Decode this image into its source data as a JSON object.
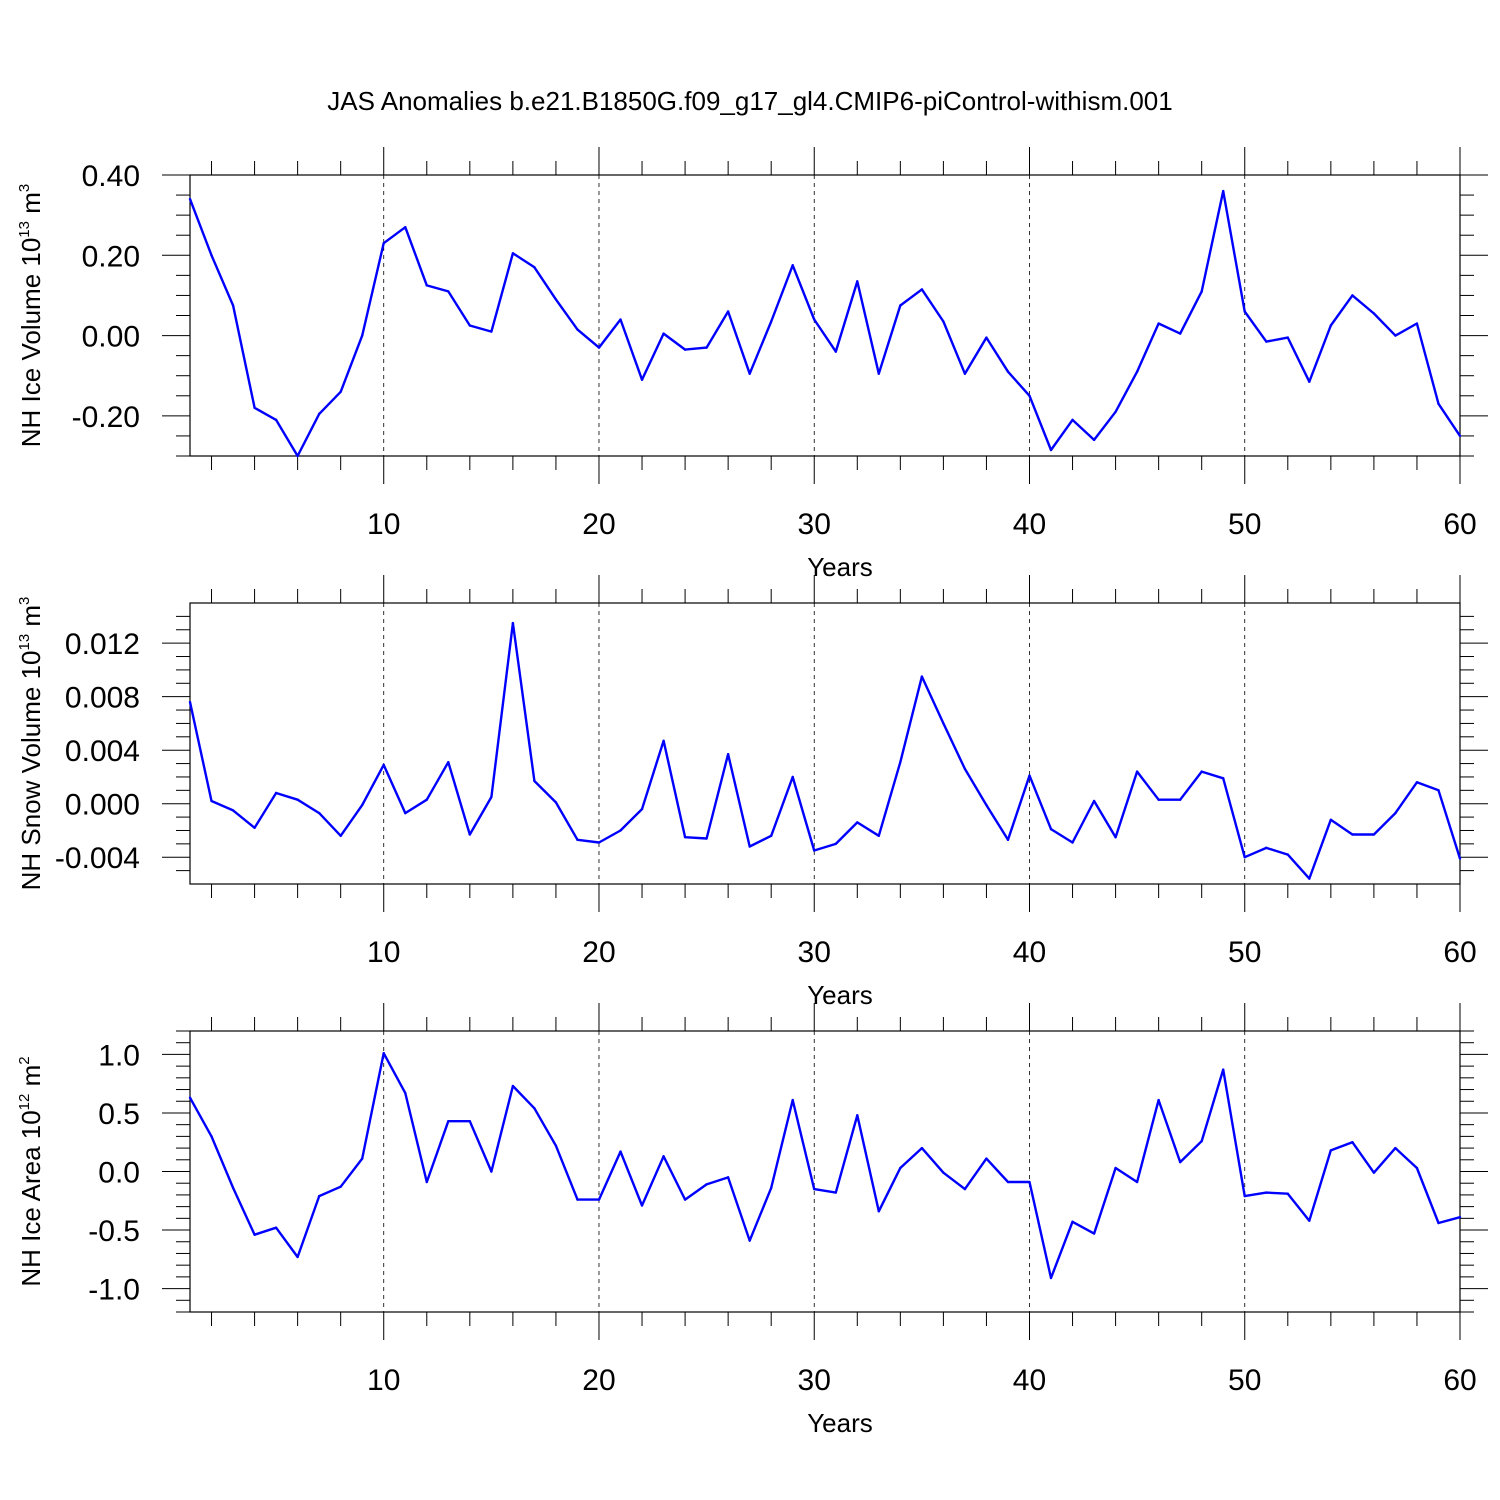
{
  "title": "JAS Anomalies b.e21.B1850G.f09_g17_gl4.CMIP6-piControl-withism.001",
  "colors": {
    "series": "#0000ff",
    "axes": "#000000",
    "grid": "#000000"
  },
  "chart_data": [
    {
      "type": "line",
      "ylabel": {
        "prefix": "NH Ice Volume 10",
        "sup": "13",
        "unit": " m",
        "unit_sup": "3"
      },
      "xlabel": "Years",
      "xlim": [
        1,
        60
      ],
      "ylim": [
        -0.3,
        0.4
      ],
      "xticks": [
        10,
        20,
        30,
        40,
        50,
        60
      ],
      "yticks": [
        -0.2,
        0.0,
        0.2,
        0.4
      ],
      "ytick_labels": [
        "-0.20",
        "0.00",
        "0.20",
        "0.40"
      ],
      "yminor": [
        -0.3,
        -0.25,
        -0.15,
        -0.1,
        -0.05,
        0.05,
        0.1,
        0.15,
        0.25,
        0.3,
        0.35
      ],
      "grid_x": true,
      "x": [
        1,
        2,
        3,
        4,
        5,
        6,
        7,
        8,
        9,
        10,
        11,
        12,
        13,
        14,
        15,
        16,
        17,
        18,
        19,
        20,
        21,
        22,
        23,
        24,
        25,
        26,
        27,
        28,
        29,
        30,
        31,
        32,
        33,
        34,
        35,
        36,
        37,
        38,
        39,
        40,
        41,
        42,
        43,
        44,
        45,
        46,
        47,
        48,
        49,
        50,
        51,
        52,
        53,
        54,
        55,
        56,
        57,
        58,
        59,
        60
      ],
      "y": [
        0.34,
        0.2,
        0.075,
        -0.18,
        -0.21,
        -0.3,
        -0.195,
        -0.14,
        0.0,
        0.23,
        0.27,
        0.125,
        0.11,
        0.025,
        0.01,
        0.205,
        0.17,
        0.09,
        0.015,
        -0.03,
        0.04,
        -0.11,
        0.005,
        -0.035,
        -0.03,
        0.06,
        -0.095,
        0.035,
        0.175,
        0.04,
        -0.04,
        0.135,
        -0.095,
        0.075,
        0.115,
        0.035,
        -0.095,
        -0.005,
        -0.09,
        -0.15,
        -0.285,
        -0.21,
        -0.26,
        -0.19,
        -0.09,
        0.03,
        0.005,
        0.11,
        0.36,
        0.06,
        -0.015,
        -0.005,
        -0.115,
        0.025,
        0.1,
        0.055,
        0.0,
        0.03,
        -0.17,
        -0.25
      ]
    },
    {
      "type": "line",
      "ylabel": {
        "prefix": "NH Snow Volume 10",
        "sup": "13",
        "unit": " m",
        "unit_sup": "3"
      },
      "xlabel": "Years",
      "xlim": [
        1,
        60
      ],
      "ylim": [
        -0.006,
        0.015
      ],
      "xticks": [
        10,
        20,
        30,
        40,
        50,
        60
      ],
      "yticks": [
        -0.004,
        0.0,
        0.004,
        0.008,
        0.012
      ],
      "ytick_labels": [
        "-0.004",
        "0.000",
        "0.004",
        "0.008",
        "0.012"
      ],
      "yminor": [
        -0.005,
        -0.003,
        -0.002,
        -0.001,
        0.001,
        0.002,
        0.003,
        0.005,
        0.006,
        0.007,
        0.009,
        0.01,
        0.011,
        0.013,
        0.014
      ],
      "grid_x": true,
      "x": [
        1,
        2,
        3,
        4,
        5,
        6,
        7,
        8,
        9,
        10,
        11,
        12,
        13,
        14,
        15,
        16,
        17,
        18,
        19,
        20,
        21,
        22,
        23,
        24,
        25,
        26,
        27,
        28,
        29,
        30,
        31,
        32,
        33,
        34,
        35,
        36,
        37,
        38,
        39,
        40,
        41,
        42,
        43,
        44,
        45,
        46,
        47,
        48,
        49,
        50,
        51,
        52,
        53,
        54,
        55,
        56,
        57,
        58,
        59,
        60
      ],
      "y": [
        0.0076,
        0.0002,
        -0.0005,
        -0.0018,
        0.0008,
        0.0003,
        -0.0007,
        -0.0024,
        -0.0001,
        0.0029,
        -0.0007,
        0.0003,
        0.0031,
        -0.0023,
        0.0005,
        0.0135,
        0.0017,
        0.0001,
        -0.0027,
        -0.0029,
        -0.002,
        -0.0004,
        0.0047,
        -0.0025,
        -0.0026,
        0.0037,
        -0.0032,
        -0.0024,
        0.002,
        -0.0035,
        -0.003,
        -0.0014,
        -0.0024,
        0.0031,
        0.0095,
        0.006,
        0.0026,
        -0.0001,
        -0.0027,
        0.0021,
        -0.0019,
        -0.0029,
        0.0002,
        -0.0025,
        0.0024,
        0.0003,
        0.0003,
        0.0024,
        0.0019,
        -0.004,
        -0.0033,
        -0.0038,
        -0.0056,
        -0.0012,
        -0.0023,
        -0.0023,
        -0.0007,
        0.0016,
        0.001,
        -0.0041
      ]
    },
    {
      "type": "line",
      "ylabel": {
        "prefix": "NH Ice Area 10",
        "sup": "12",
        "unit": " m",
        "unit_sup": "2"
      },
      "xlabel": "Years",
      "xlim": [
        1,
        60
      ],
      "ylim": [
        -1.2,
        1.2
      ],
      "xticks": [
        10,
        20,
        30,
        40,
        50,
        60
      ],
      "yticks": [
        -1.0,
        -0.5,
        0.0,
        0.5,
        1.0
      ],
      "ytick_labels": [
        "-1.0",
        "-0.5",
        "0.0",
        "0.5",
        "1.0"
      ],
      "yminor": [
        -1.2,
        -1.1,
        -0.9,
        -0.8,
        -0.7,
        -0.6,
        -0.4,
        -0.3,
        -0.2,
        -0.1,
        0.1,
        0.2,
        0.3,
        0.4,
        0.6,
        0.7,
        0.8,
        0.9,
        1.1,
        1.2
      ],
      "grid_x": true,
      "x": [
        1,
        2,
        3,
        4,
        5,
        6,
        7,
        8,
        9,
        10,
        11,
        12,
        13,
        14,
        15,
        16,
        17,
        18,
        19,
        20,
        21,
        22,
        23,
        24,
        25,
        26,
        27,
        28,
        29,
        30,
        31,
        32,
        33,
        34,
        35,
        36,
        37,
        38,
        39,
        40,
        41,
        42,
        43,
        44,
        45,
        46,
        47,
        48,
        49,
        50,
        51,
        52,
        53,
        54,
        55,
        56,
        57,
        58,
        59,
        60
      ],
      "y": [
        0.63,
        0.3,
        -0.14,
        -0.54,
        -0.48,
        -0.73,
        -0.21,
        -0.13,
        0.11,
        1.01,
        0.67,
        -0.09,
        0.43,
        0.43,
        0.0,
        0.73,
        0.54,
        0.22,
        -0.24,
        -0.24,
        0.17,
        -0.29,
        0.13,
        -0.24,
        -0.11,
        -0.05,
        -0.59,
        -0.14,
        0.61,
        -0.15,
        -0.18,
        0.48,
        -0.34,
        0.03,
        0.2,
        -0.01,
        -0.15,
        0.11,
        -0.09,
        -0.09,
        -0.91,
        -0.43,
        -0.53,
        0.03,
        -0.09,
        0.61,
        0.08,
        0.26,
        0.87,
        -0.21,
        -0.18,
        -0.19,
        -0.42,
        0.18,
        0.25,
        -0.01,
        0.2,
        0.03,
        -0.44,
        -0.39
      ]
    }
  ]
}
